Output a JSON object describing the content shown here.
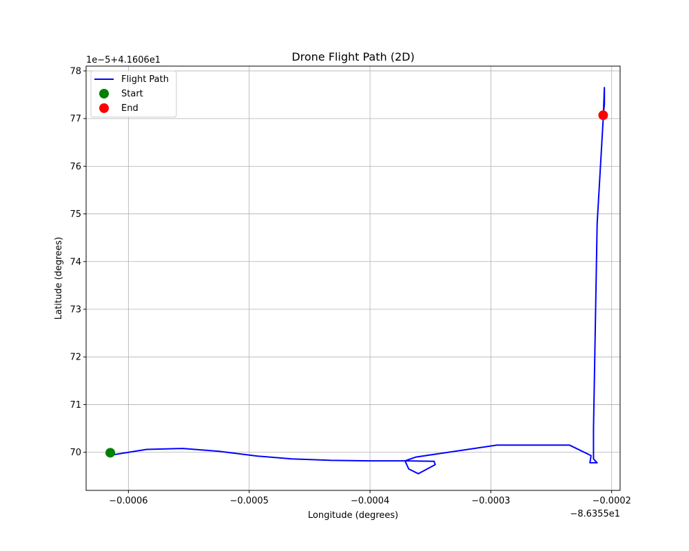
{
  "chart_data": {
    "type": "line",
    "title": "Drone Flight Path (2D)",
    "xlabel": "Longitude (degrees)",
    "ylabel": "Latitude (degrees)",
    "x_offset_label": "−8.6355e1",
    "y_offset_label": "1e−5+4.1606e1",
    "xlim": [
      -0.000635,
      -0.000193
    ],
    "ylim": [
      69.2,
      78.1
    ],
    "x_ticks": [
      -0.0006,
      -0.0005,
      -0.0004,
      -0.0003,
      -0.0002
    ],
    "x_tick_labels": [
      "−0.0006",
      "−0.0005",
      "−0.0004",
      "−0.0003",
      "−0.0002"
    ],
    "y_ticks": [
      70,
      71,
      72,
      73,
      74,
      75,
      76,
      77,
      78
    ],
    "y_tick_labels": [
      "70",
      "71",
      "72",
      "73",
      "74",
      "75",
      "76",
      "77",
      "78"
    ],
    "grid": true,
    "legend_position": "top-left",
    "series": [
      {
        "name": "Flight Path",
        "color": "#0000ff",
        "x": [
          -0.000615,
          -0.000612,
          -0.000585,
          -0.000555,
          -0.000525,
          -0.000493,
          -0.000465,
          -0.000432,
          -0.0004,
          -0.00037,
          -0.000347,
          -0.000346,
          -0.00036,
          -0.000368,
          -0.000371,
          -0.000362,
          -0.000295,
          -0.000235,
          -0.000217,
          -0.000218,
          -0.000212,
          -0.000215,
          -0.000215,
          -0.000212,
          -0.000207,
          -0.000206,
          -0.000206,
          -0.000207
        ],
        "y": [
          69.97,
          69.95,
          70.06,
          70.08,
          70.02,
          69.92,
          69.86,
          69.83,
          69.82,
          69.82,
          69.81,
          69.74,
          69.55,
          69.65,
          69.82,
          69.9,
          70.15,
          70.15,
          69.93,
          69.78,
          69.78,
          69.86,
          70.5,
          74.8,
          77.0,
          77.65,
          77.3,
          77.07
        ]
      }
    ],
    "markers": [
      {
        "name": "Start",
        "color": "#008000",
        "x": -0.000615,
        "y": 69.99
      },
      {
        "name": "End",
        "color": "#ff0000",
        "x": -0.000207,
        "y": 77.07
      }
    ]
  }
}
